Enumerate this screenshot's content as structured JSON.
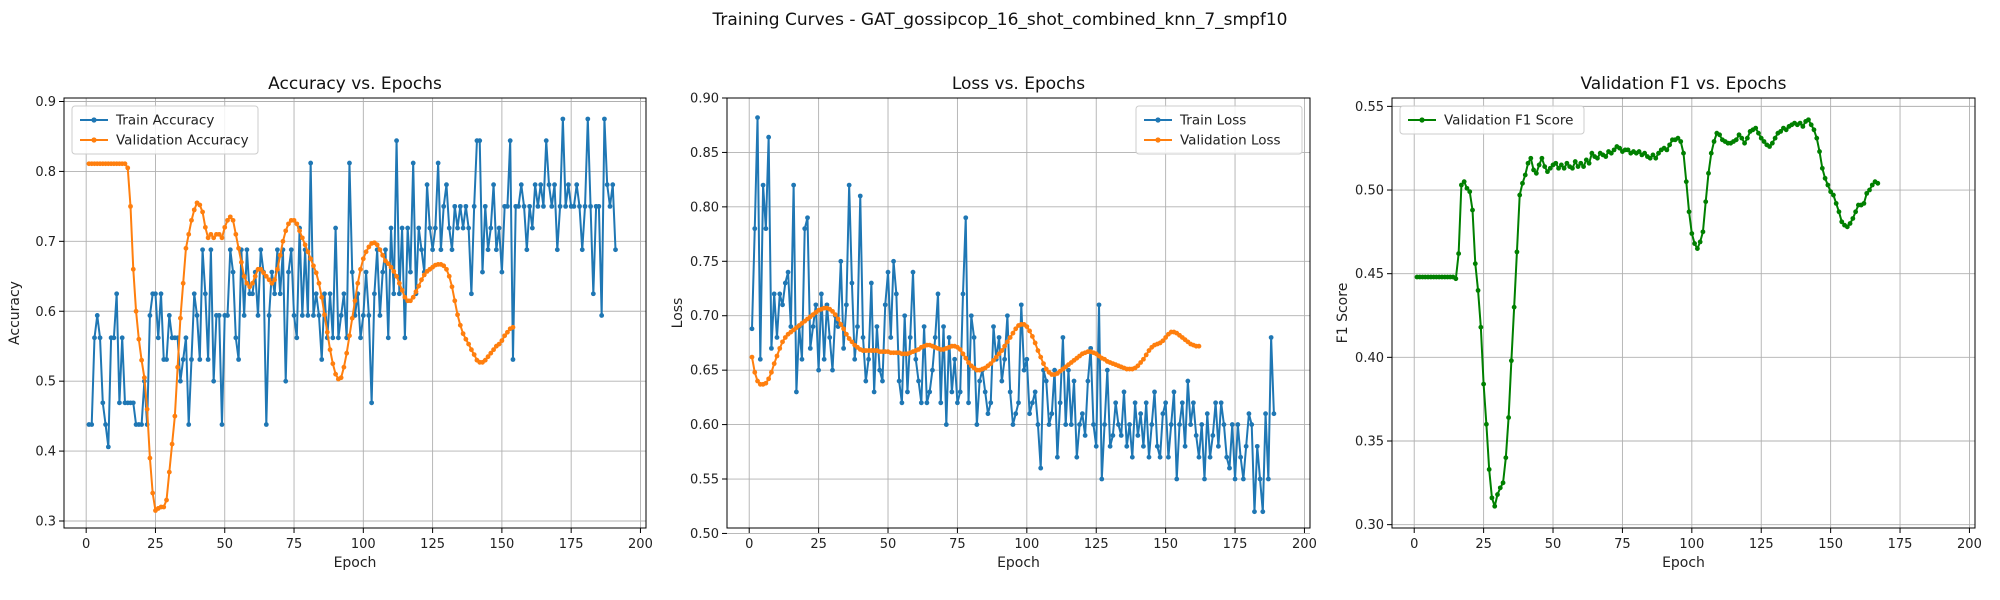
{
  "figure": {
    "suptitle": "Training Curves - GAT_gossipcop_16_shot_combined_knn_7_smpf10"
  },
  "colors": {
    "train": "#1f77b4",
    "validation": "#ff7f0e",
    "f1": "#008000",
    "grid": "#b0b0b0",
    "axes": "#000000"
  },
  "chart_data": [
    {
      "type": "line",
      "title": "Accuracy vs. Epochs",
      "xlabel": "Epoch",
      "ylabel": "Accuracy",
      "xlim": [
        -8,
        202
      ],
      "ylim": [
        0.29,
        0.905
      ],
      "xticks": [
        0,
        25,
        50,
        75,
        100,
        125,
        150,
        175,
        200
      ],
      "yticks": [
        0.3,
        0.4,
        0.5,
        0.6,
        0.7,
        0.8,
        0.9
      ],
      "grid": true,
      "legend_position": "upper-left",
      "series": [
        {
          "name": "Train Accuracy",
          "color": "#1f77b4",
          "x_start": 1,
          "values": [
            0.438,
            0.438,
            0.562,
            0.594,
            0.562,
            0.469,
            0.438,
            0.406,
            0.562,
            0.562,
            0.625,
            0.469,
            0.562,
            0.469,
            0.469,
            0.469,
            0.469,
            0.438,
            0.438,
            0.438,
            0.5,
            0.438,
            0.594,
            0.625,
            0.625,
            0.562,
            0.625,
            0.531,
            0.531,
            0.594,
            0.562,
            0.562,
            0.562,
            0.5,
            0.531,
            0.562,
            0.438,
            0.531,
            0.625,
            0.594,
            0.531,
            0.688,
            0.625,
            0.531,
            0.688,
            0.5,
            0.594,
            0.594,
            0.438,
            0.594,
            0.594,
            0.688,
            0.656,
            0.562,
            0.531,
            0.688,
            0.594,
            0.688,
            0.625,
            0.625,
            0.656,
            0.594,
            0.688,
            0.656,
            0.438,
            0.594,
            0.656,
            0.625,
            0.688,
            0.625,
            0.688,
            0.5,
            0.656,
            0.688,
            0.594,
            0.562,
            0.719,
            0.594,
            0.688,
            0.594,
            0.812,
            0.594,
            0.625,
            0.594,
            0.531,
            0.625,
            0.562,
            0.625,
            0.562,
            0.719,
            0.562,
            0.594,
            0.625,
            0.562,
            0.812,
            0.656,
            0.594,
            0.625,
            0.562,
            0.594,
            0.656,
            0.594,
            0.469,
            0.625,
            0.688,
            0.594,
            0.656,
            0.688,
            0.562,
            0.719,
            0.625,
            0.844,
            0.625,
            0.719,
            0.562,
            0.719,
            0.656,
            0.812,
            0.625,
            0.719,
            0.688,
            0.656,
            0.781,
            0.719,
            0.688,
            0.719,
            0.812,
            0.688,
            0.75,
            0.781,
            0.719,
            0.688,
            0.75,
            0.719,
            0.75,
            0.719,
            0.75,
            0.719,
            0.625,
            0.75,
            0.844,
            0.844,
            0.656,
            0.75,
            0.688,
            0.719,
            0.781,
            0.688,
            0.719,
            0.656,
            0.75,
            0.75,
            0.844,
            0.531,
            0.75,
            0.75,
            0.781,
            0.75,
            0.688,
            0.75,
            0.719,
            0.781,
            0.75,
            0.781,
            0.75,
            0.844,
            0.781,
            0.75,
            0.781,
            0.688,
            0.75,
            0.875,
            0.75,
            0.781,
            0.75,
            0.75,
            0.781,
            0.75,
            0.688,
            0.75,
            0.875,
            0.75,
            0.625,
            0.75,
            0.75,
            0.594,
            0.875,
            0.781,
            0.75,
            0.781,
            0.688
          ]
        },
        {
          "name": "Validation Accuracy",
          "color": "#ff7f0e",
          "x_start": 1,
          "values": [
            0.811,
            0.811,
            0.811,
            0.811,
            0.811,
            0.811,
            0.811,
            0.811,
            0.811,
            0.811,
            0.811,
            0.811,
            0.811,
            0.811,
            0.805,
            0.75,
            0.66,
            0.6,
            0.56,
            0.53,
            0.505,
            0.46,
            0.39,
            0.34,
            0.315,
            0.318,
            0.32,
            0.32,
            0.33,
            0.37,
            0.41,
            0.45,
            0.52,
            0.59,
            0.64,
            0.69,
            0.71,
            0.73,
            0.745,
            0.755,
            0.752,
            0.742,
            0.72,
            0.705,
            0.71,
            0.705,
            0.71,
            0.71,
            0.705,
            0.72,
            0.73,
            0.735,
            0.73,
            0.71,
            0.69,
            0.67,
            0.65,
            0.64,
            0.635,
            0.64,
            0.65,
            0.66,
            0.66,
            0.655,
            0.65,
            0.645,
            0.64,
            0.645,
            0.66,
            0.68,
            0.7,
            0.715,
            0.725,
            0.73,
            0.73,
            0.725,
            0.715,
            0.705,
            0.695,
            0.685,
            0.675,
            0.665,
            0.655,
            0.64,
            0.62,
            0.595,
            0.57,
            0.545,
            0.525,
            0.51,
            0.503,
            0.505,
            0.52,
            0.54,
            0.565,
            0.59,
            0.615,
            0.64,
            0.66,
            0.675,
            0.685,
            0.692,
            0.697,
            0.698,
            0.695,
            0.688,
            0.68,
            0.672,
            0.668,
            0.663,
            0.657,
            0.65,
            0.64,
            0.63,
            0.62,
            0.615,
            0.615,
            0.62,
            0.628,
            0.636,
            0.645,
            0.652,
            0.657,
            0.66,
            0.663,
            0.666,
            0.667,
            0.667,
            0.665,
            0.66,
            0.65,
            0.635,
            0.615,
            0.595,
            0.58,
            0.568,
            0.56,
            0.553,
            0.545,
            0.538,
            0.53,
            0.527,
            0.527,
            0.53,
            0.535,
            0.54,
            0.545,
            0.55,
            0.553,
            0.558,
            0.565,
            0.57,
            0.575,
            0.577
          ]
        }
      ]
    },
    {
      "type": "line",
      "title": "Loss vs. Epochs",
      "xlabel": "Epoch",
      "ylabel": "Loss",
      "xlim": [
        -8,
        202
      ],
      "ylim": [
        0.505,
        0.9
      ],
      "xticks": [
        0,
        25,
        50,
        75,
        100,
        125,
        150,
        175,
        200
      ],
      "yticks": [
        0.5,
        0.55,
        0.6,
        0.65,
        0.7,
        0.75,
        0.8,
        0.85,
        0.9
      ],
      "grid": true,
      "legend_position": "upper-right",
      "series": [
        {
          "name": "Train Loss",
          "color": "#1f77b4",
          "x_start": 1,
          "values": [
            0.688,
            0.78,
            0.882,
            0.66,
            0.82,
            0.78,
            0.864,
            0.67,
            0.72,
            0.68,
            0.72,
            0.71,
            0.73,
            0.74,
            0.69,
            0.82,
            0.63,
            0.69,
            0.66,
            0.78,
            0.79,
            0.67,
            0.69,
            0.71,
            0.65,
            0.72,
            0.66,
            0.71,
            0.68,
            0.65,
            0.7,
            0.69,
            0.75,
            0.67,
            0.71,
            0.82,
            0.73,
            0.66,
            0.69,
            0.81,
            0.68,
            0.64,
            0.66,
            0.73,
            0.63,
            0.69,
            0.65,
            0.64,
            0.71,
            0.74,
            0.68,
            0.75,
            0.72,
            0.64,
            0.62,
            0.7,
            0.63,
            0.68,
            0.74,
            0.66,
            0.64,
            0.62,
            0.69,
            0.62,
            0.63,
            0.65,
            0.68,
            0.72,
            0.62,
            0.69,
            0.6,
            0.68,
            0.63,
            0.66,
            0.62,
            0.63,
            0.72,
            0.79,
            0.62,
            0.7,
            0.68,
            0.6,
            0.64,
            0.65,
            0.63,
            0.61,
            0.62,
            0.69,
            0.66,
            0.68,
            0.64,
            0.66,
            0.7,
            0.63,
            0.6,
            0.61,
            0.62,
            0.71,
            0.65,
            0.66,
            0.61,
            0.62,
            0.63,
            0.6,
            0.56,
            0.65,
            0.64,
            0.6,
            0.61,
            0.65,
            0.57,
            0.62,
            0.68,
            0.6,
            0.65,
            0.6,
            0.64,
            0.57,
            0.6,
            0.61,
            0.59,
            0.64,
            0.67,
            0.6,
            0.58,
            0.71,
            0.55,
            0.6,
            0.65,
            0.58,
            0.59,
            0.62,
            0.6,
            0.59,
            0.63,
            0.58,
            0.6,
            0.57,
            0.62,
            0.59,
            0.61,
            0.58,
            0.62,
            0.57,
            0.6,
            0.63,
            0.58,
            0.57,
            0.61,
            0.62,
            0.57,
            0.6,
            0.63,
            0.55,
            0.6,
            0.62,
            0.58,
            0.64,
            0.6,
            0.62,
            0.59,
            0.57,
            0.6,
            0.55,
            0.61,
            0.57,
            0.59,
            0.62,
            0.58,
            0.62,
            0.6,
            0.57,
            0.56,
            0.6,
            0.55,
            0.6,
            0.57,
            0.55,
            0.58,
            0.61,
            0.6,
            0.52,
            0.58,
            0.55,
            0.52,
            0.61,
            0.55,
            0.68,
            0.61
          ]
        },
        {
          "name": "Validation Loss",
          "color": "#ff7f0e",
          "x_start": 1,
          "values": [
            0.662,
            0.648,
            0.64,
            0.637,
            0.637,
            0.638,
            0.642,
            0.648,
            0.656,
            0.663,
            0.67,
            0.676,
            0.68,
            0.683,
            0.685,
            0.687,
            0.689,
            0.691,
            0.693,
            0.695,
            0.697,
            0.699,
            0.701,
            0.703,
            0.705,
            0.706,
            0.707,
            0.707,
            0.706,
            0.704,
            0.701,
            0.697,
            0.692,
            0.688,
            0.683,
            0.679,
            0.676,
            0.673,
            0.671,
            0.669,
            0.668,
            0.668,
            0.668,
            0.668,
            0.668,
            0.668,
            0.667,
            0.667,
            0.667,
            0.667,
            0.666,
            0.666,
            0.666,
            0.666,
            0.665,
            0.665,
            0.665,
            0.666,
            0.667,
            0.668,
            0.669,
            0.671,
            0.672,
            0.673,
            0.673,
            0.672,
            0.671,
            0.67,
            0.669,
            0.669,
            0.67,
            0.671,
            0.672,
            0.672,
            0.671,
            0.669,
            0.665,
            0.661,
            0.657,
            0.654,
            0.652,
            0.65,
            0.65,
            0.651,
            0.652,
            0.654,
            0.656,
            0.659,
            0.662,
            0.665,
            0.668,
            0.672,
            0.676,
            0.68,
            0.684,
            0.688,
            0.691,
            0.692,
            0.692,
            0.69,
            0.686,
            0.681,
            0.675,
            0.668,
            0.662,
            0.656,
            0.651,
            0.648,
            0.646,
            0.646,
            0.647,
            0.649,
            0.651,
            0.653,
            0.655,
            0.657,
            0.659,
            0.661,
            0.663,
            0.665,
            0.666,
            0.667,
            0.667,
            0.666,
            0.665,
            0.663,
            0.661,
            0.66,
            0.658,
            0.657,
            0.656,
            0.655,
            0.654,
            0.653,
            0.652,
            0.651,
            0.651,
            0.651,
            0.652,
            0.654,
            0.657,
            0.66,
            0.664,
            0.668,
            0.671,
            0.673,
            0.674,
            0.675,
            0.677,
            0.68,
            0.683,
            0.685,
            0.685,
            0.684,
            0.682,
            0.68,
            0.678,
            0.676,
            0.674,
            0.673,
            0.672,
            0.672
          ]
        }
      ]
    },
    {
      "type": "line",
      "title": "Validation F1 vs. Epochs",
      "xlabel": "Epoch",
      "ylabel": "F1 Score",
      "xlim": [
        -8,
        202
      ],
      "ylim": [
        0.298,
        0.555
      ],
      "xticks": [
        0,
        25,
        50,
        75,
        100,
        125,
        150,
        175,
        200
      ],
      "yticks": [
        0.3,
        0.35,
        0.4,
        0.45,
        0.5,
        0.55
      ],
      "grid": true,
      "legend_position": "upper-left",
      "series": [
        {
          "name": "Validation F1 Score",
          "color": "#008000",
          "x_start": 1,
          "values": [
            0.448,
            0.448,
            0.448,
            0.448,
            0.448,
            0.448,
            0.448,
            0.448,
            0.448,
            0.448,
            0.448,
            0.448,
            0.448,
            0.448,
            0.447,
            0.462,
            0.503,
            0.505,
            0.501,
            0.499,
            0.488,
            0.456,
            0.44,
            0.418,
            0.384,
            0.36,
            0.333,
            0.316,
            0.311,
            0.318,
            0.322,
            0.325,
            0.34,
            0.364,
            0.398,
            0.43,
            0.463,
            0.497,
            0.504,
            0.509,
            0.516,
            0.519,
            0.512,
            0.51,
            0.515,
            0.519,
            0.514,
            0.511,
            0.513,
            0.515,
            0.516,
            0.513,
            0.515,
            0.513,
            0.516,
            0.514,
            0.513,
            0.517,
            0.514,
            0.516,
            0.514,
            0.518,
            0.516,
            0.522,
            0.52,
            0.519,
            0.522,
            0.521,
            0.52,
            0.523,
            0.522,
            0.524,
            0.526,
            0.525,
            0.523,
            0.524,
            0.524,
            0.522,
            0.523,
            0.522,
            0.523,
            0.521,
            0.522,
            0.52,
            0.519,
            0.521,
            0.519,
            0.522,
            0.524,
            0.525,
            0.524,
            0.527,
            0.53,
            0.53,
            0.531,
            0.529,
            0.522,
            0.505,
            0.487,
            0.474,
            0.468,
            0.465,
            0.469,
            0.475,
            0.493,
            0.51,
            0.522,
            0.529,
            0.534,
            0.533,
            0.53,
            0.529,
            0.528,
            0.528,
            0.529,
            0.53,
            0.533,
            0.531,
            0.528,
            0.531,
            0.535,
            0.536,
            0.537,
            0.534,
            0.531,
            0.529,
            0.527,
            0.526,
            0.528,
            0.531,
            0.534,
            0.535,
            0.537,
            0.536,
            0.538,
            0.539,
            0.54,
            0.539,
            0.54,
            0.538,
            0.541,
            0.542,
            0.539,
            0.536,
            0.531,
            0.523,
            0.513,
            0.507,
            0.503,
            0.499,
            0.497,
            0.492,
            0.487,
            0.481,
            0.479,
            0.478,
            0.48,
            0.483,
            0.487,
            0.491,
            0.491,
            0.492,
            0.498,
            0.5,
            0.503,
            0.505,
            0.504
          ]
        }
      ]
    }
  ]
}
